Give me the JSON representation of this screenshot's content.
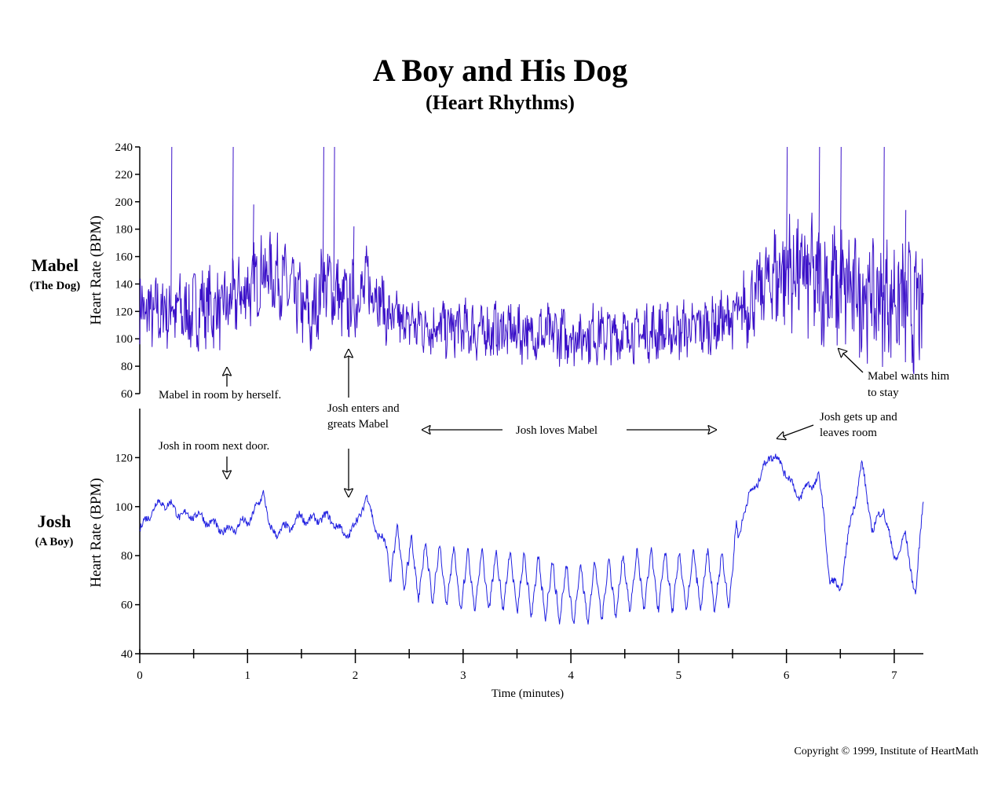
{
  "chart_data": {
    "type": "line",
    "title": "A Boy and His Dog",
    "subtitle": "(Heart Rhythms)",
    "xlabel": "Time (minutes)",
    "x_ticks": [
      "0",
      "1",
      "2",
      "3",
      "4",
      "5",
      "6",
      "7"
    ],
    "xlim": [
      0,
      7.27
    ],
    "panels": [
      {
        "name": "Mabel",
        "subname": "(The Dog)",
        "ylabel": "Heart Rate (BPM)",
        "ylim": [
          60,
          240
        ],
        "y_ticks": [
          "60",
          "80",
          "100",
          "120",
          "140",
          "160",
          "180",
          "200",
          "220",
          "240"
        ],
        "color": "#3a10c8",
        "x": [
          0,
          0.15,
          0.3,
          0.45,
          0.6,
          0.75,
          0.85,
          1.0,
          1.15,
          1.3,
          1.45,
          1.6,
          1.7,
          1.8,
          1.9,
          2.0,
          2.1,
          2.2,
          2.3,
          2.45,
          2.6,
          2.8,
          3.0,
          3.2,
          3.4,
          3.6,
          3.8,
          4.0,
          4.2,
          4.4,
          4.6,
          4.8,
          5.0,
          5.2,
          5.4,
          5.6,
          5.75,
          5.85,
          6.0,
          6.15,
          6.3,
          6.45,
          6.6,
          6.75,
          6.9,
          7.05,
          7.2,
          7.27
        ],
        "y": [
          120,
          118,
          122,
          118,
          125,
          120,
          128,
          135,
          150,
          145,
          130,
          112,
          145,
          135,
          125,
          130,
          140,
          135,
          115,
          112,
          110,
          108,
          107,
          105,
          106,
          104,
          103,
          102,
          104,
          103,
          104,
          105,
          106,
          108,
          112,
          120,
          135,
          145,
          150,
          148,
          140,
          138,
          135,
          132,
          128,
          130,
          120,
          125
        ],
        "spikes": [
          {
            "x": 0.29,
            "y": 240
          },
          {
            "x": 0.86,
            "y": 240
          },
          {
            "x": 1.05,
            "y": 198
          },
          {
            "x": 1.7,
            "y": 240
          },
          {
            "x": 1.8,
            "y": 240
          },
          {
            "x": 1.98,
            "y": 182
          },
          {
            "x": 6.0,
            "y": 240
          },
          {
            "x": 6.3,
            "y": 240
          },
          {
            "x": 6.5,
            "y": 240
          },
          {
            "x": 6.9,
            "y": 240
          },
          {
            "x": 7.1,
            "y": 194
          }
        ]
      },
      {
        "name": "Josh",
        "subname": "(A Boy)",
        "ylabel": "Heart Rate (BPM)",
        "ylim": [
          40,
          140
        ],
        "y_ticks": [
          "40",
          "60",
          "80",
          "100",
          "120"
        ],
        "color": "#2020e0",
        "x": [
          0,
          0.1,
          0.2,
          0.3,
          0.4,
          0.5,
          0.6,
          0.7,
          0.8,
          0.9,
          1.0,
          1.1,
          1.15,
          1.2,
          1.3,
          1.4,
          1.5,
          1.6,
          1.7,
          1.8,
          1.9,
          2.0,
          2.1,
          2.2,
          2.3,
          2.4,
          2.5,
          2.6,
          2.8,
          3.0,
          3.2,
          3.4,
          3.6,
          3.8,
          4.0,
          4.2,
          4.4,
          4.6,
          4.8,
          5.0,
          5.2,
          5.4,
          5.5,
          5.6,
          5.7,
          5.8,
          5.85,
          5.9,
          6.0,
          6.1,
          6.2,
          6.3,
          6.35,
          6.4,
          6.5,
          6.6,
          6.7,
          6.8,
          6.9,
          7.0,
          7.1,
          7.2,
          7.27
        ],
        "y": [
          90,
          98,
          102,
          100,
          96,
          97,
          95,
          92,
          90,
          92,
          94,
          100,
          108,
          90,
          90,
          92,
          96,
          94,
          96,
          94,
          88,
          92,
          104,
          90,
          82,
          80,
          76,
          74,
          72,
          70,
          70,
          70,
          68,
          66,
          64,
          65,
          67,
          70,
          70,
          69,
          70,
          69,
          73,
          98,
          108,
          116,
          122,
          120,
          114,
          104,
          108,
          112,
          95,
          70,
          66,
          95,
          117,
          90,
          100,
          78,
          88,
          64,
          103
        ]
      }
    ],
    "annotations": {
      "mabel_alone": "Mabel in room by herself.",
      "josh_next_door": "Josh in room next door.",
      "josh_enters_1": "Josh enters and",
      "josh_enters_2": "greats Mabel",
      "josh_loves": "Josh loves Mabel",
      "josh_leaves_1": "Josh gets up and",
      "josh_leaves_2": "leaves room",
      "mabel_wants_1": "Mabel wants him",
      "mabel_wants_2": "to stay"
    }
  },
  "copyright": "Copyright © 1999, Institute of HeartMath"
}
